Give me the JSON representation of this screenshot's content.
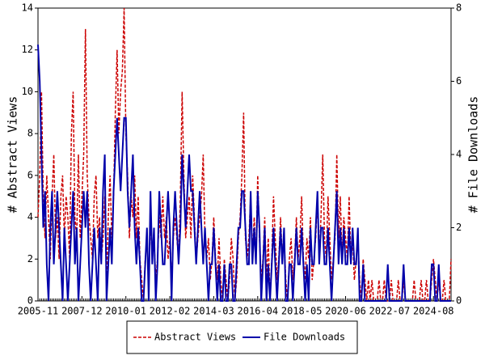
{
  "chart_data": {
    "type": "line",
    "ylabel": "# Abstract Views",
    "y2label": "# File Downloads",
    "ylim": [
      0,
      14
    ],
    "yticks": [
      0,
      2,
      4,
      6,
      8,
      10,
      12,
      14
    ],
    "y2lim": [
      0,
      8
    ],
    "y2ticks": [
      0,
      2,
      4,
      6,
      8
    ],
    "categories": [
      "2005-11",
      null,
      null,
      null,
      null,
      null,
      null,
      null,
      null,
      null,
      null,
      null,
      null,
      null,
      null,
      null,
      null,
      null,
      null,
      null,
      null,
      null,
      null,
      null,
      null,
      "2007-12",
      null,
      null,
      null,
      null,
      null,
      null,
      null,
      null,
      null,
      null,
      null,
      null,
      null,
      null,
      null,
      null,
      null,
      null,
      null,
      null,
      null,
      null,
      null,
      null,
      "2010-01",
      null,
      null,
      null,
      null,
      null,
      null,
      null,
      null,
      null,
      null,
      null,
      null,
      null,
      null,
      null,
      null,
      null,
      null,
      null,
      null,
      null,
      null,
      null,
      null,
      "2012-02",
      null,
      null,
      null,
      null,
      null,
      null,
      null,
      null,
      null,
      null,
      null,
      null,
      null,
      null,
      null,
      null,
      null,
      null,
      null,
      null,
      null,
      null,
      null,
      null,
      "2014-03",
      null,
      null,
      null,
      null,
      null,
      null,
      null,
      null,
      null,
      null,
      null,
      null,
      null,
      null,
      null,
      null,
      null,
      null,
      null,
      null,
      null,
      null,
      null,
      null,
      "2016-04",
      null,
      null,
      null,
      null,
      null,
      null,
      null,
      null,
      null,
      null,
      null,
      null,
      null,
      null,
      null,
      null,
      null,
      null,
      null,
      null,
      null,
      null,
      null,
      null,
      "2018-05",
      null,
      null,
      null,
      null,
      null,
      null,
      null,
      null,
      null,
      null,
      null,
      null,
      null,
      null,
      null,
      null,
      null,
      null,
      null,
      null,
      null,
      null,
      null,
      null,
      "2020-06",
      null,
      null,
      null,
      null,
      null,
      null,
      null,
      null,
      null,
      null,
      null,
      null,
      null,
      null,
      null,
      null,
      null,
      null,
      null,
      null,
      null,
      null,
      null,
      null,
      "2022-07",
      null,
      null,
      null,
      null,
      null,
      null,
      null,
      null,
      null,
      null,
      null,
      null,
      null,
      null,
      null,
      null,
      null,
      null,
      null,
      null,
      null,
      null,
      null,
      null,
      "2024-08",
      null,
      null,
      null,
      null,
      null,
      null,
      null,
      null,
      null,
      null
    ],
    "series": [
      {
        "name": "Abstract Views",
        "color": "#cc0000",
        "axis": "y",
        "values": [
          4,
          6,
          10,
          5,
          3,
          6,
          4,
          2,
          5,
          7,
          3,
          4,
          2,
          5,
          6,
          3,
          5,
          4,
          2,
          8,
          10,
          4,
          3,
          7,
          3,
          5,
          7,
          13,
          6,
          4,
          3,
          2,
          5,
          6,
          3,
          4,
          2,
          3,
          5,
          1,
          4,
          6,
          3,
          5,
          9,
          12,
          8,
          10,
          11,
          14,
          8,
          6,
          3,
          5,
          4,
          6,
          3,
          5,
          2,
          1,
          0,
          2,
          3,
          1,
          4,
          2,
          3,
          1,
          2,
          4,
          3,
          5,
          3,
          4,
          2,
          3,
          1,
          3,
          4,
          3,
          2,
          5,
          10,
          6,
          3,
          4,
          5,
          3,
          6,
          4,
          2,
          3,
          4,
          5,
          7,
          3,
          2,
          3,
          1,
          2,
          4,
          2,
          1,
          3,
          1,
          0,
          2,
          1,
          0,
          1,
          3,
          2,
          0,
          1,
          3,
          4,
          6,
          9,
          3,
          2,
          3,
          5,
          2,
          4,
          2,
          6,
          3,
          1,
          2,
          4,
          1,
          3,
          0,
          2,
          5,
          3,
          1,
          2,
          4,
          2,
          3,
          1,
          0,
          2,
          3,
          1,
          2,
          4,
          2,
          3,
          5,
          2,
          1,
          3,
          2,
          4,
          1,
          2,
          3,
          5,
          2,
          4,
          7,
          3,
          2,
          5,
          3,
          1,
          2,
          3,
          7,
          3,
          5,
          2,
          4,
          3,
          2,
          5,
          2,
          3,
          1,
          2,
          3,
          1,
          0,
          2,
          1,
          0,
          1,
          0,
          1,
          0,
          0,
          0,
          1,
          0,
          0,
          1,
          0,
          0,
          0,
          1,
          0,
          0,
          0,
          1,
          0,
          0,
          1,
          0,
          0,
          0,
          0,
          0,
          1,
          0,
          0,
          0,
          1,
          0,
          0,
          1,
          0,
          0,
          1,
          2,
          1,
          0,
          1,
          0,
          0,
          1,
          0,
          0,
          0,
          2
        ]
      },
      {
        "name": "File Downloads",
        "color": "#0000aa",
        "axis": "y2",
        "values": [
          7,
          6,
          4,
          2,
          3,
          1,
          0,
          2,
          3,
          1,
          2,
          3,
          2,
          1,
          0,
          2,
          1,
          0,
          1,
          2,
          3,
          1,
          2,
          0,
          1,
          2,
          3,
          2,
          3,
          1,
          0,
          1,
          2,
          1,
          0,
          2,
          1,
          3,
          4,
          0,
          1,
          2,
          1,
          3,
          4,
          5,
          4,
          3,
          4,
          5,
          5,
          3,
          2,
          3,
          4,
          2,
          1,
          2,
          1,
          0,
          0,
          1,
          2,
          0,
          3,
          1,
          2,
          0,
          1,
          3,
          2,
          1,
          1,
          2,
          3,
          2,
          0,
          2,
          3,
          2,
          1,
          2,
          4,
          3,
          2,
          3,
          4,
          3,
          3,
          2,
          1,
          2,
          3,
          2,
          1,
          2,
          1,
          0,
          1,
          1,
          2,
          1,
          0,
          1,
          0,
          0,
          1,
          0,
          0,
          1,
          1,
          0,
          0,
          1,
          2,
          2,
          3,
          3,
          2,
          1,
          1,
          3,
          1,
          2,
          1,
          3,
          2,
          0,
          1,
          2,
          0,
          1,
          0,
          1,
          2,
          1,
          0,
          1,
          2,
          1,
          2,
          0,
          0,
          1,
          1,
          0,
          1,
          2,
          1,
          1,
          2,
          1,
          0,
          1,
          0,
          2,
          1,
          1,
          2,
          3,
          1,
          2,
          2,
          1,
          1,
          2,
          1,
          0,
          1,
          2,
          3,
          1,
          2,
          1,
          2,
          1,
          1,
          2,
          1,
          2,
          1,
          1,
          2,
          0,
          0,
          1,
          0,
          0,
          0,
          0,
          0,
          0,
          0,
          0,
          0,
          0,
          0,
          0,
          0,
          1,
          0,
          0,
          0,
          0,
          0,
          0,
          0,
          0,
          1,
          0,
          0,
          0,
          0,
          0,
          0,
          0,
          0,
          0,
          0,
          0,
          0,
          0,
          0,
          0,
          1,
          1,
          0,
          0,
          1,
          0,
          0,
          0,
          0,
          0,
          0,
          0
        ]
      }
    ]
  }
}
